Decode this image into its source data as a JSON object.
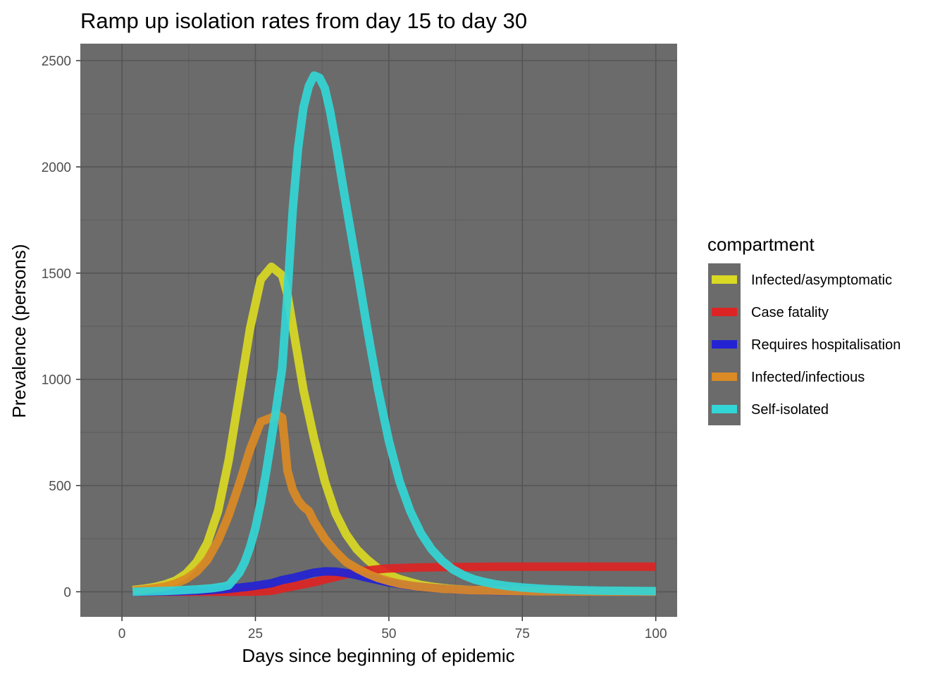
{
  "chart_data": {
    "type": "line",
    "title": "Ramp up isolation rates from day 15 to day 30",
    "xlabel": "Days since beginning of epidemic",
    "ylabel": "Prevalence (persons)",
    "xlim": [
      -7.8,
      104
    ],
    "ylim": [
      -118,
      2580
    ],
    "x_ticks": [
      0,
      25,
      50,
      75,
      100
    ],
    "y_ticks": [
      0,
      500,
      1000,
      1500,
      2000,
      2500
    ],
    "grid": true,
    "panel_background": "#6b6b6b",
    "legend": {
      "title": "compartment",
      "position": "right",
      "background": "#6b6b6b"
    },
    "series": [
      {
        "name": "Infected/asymptomatic",
        "color": "#d9d924",
        "x": [
          2,
          4,
          6,
          8,
          10,
          12,
          14,
          16,
          18,
          20,
          22,
          24,
          26,
          28,
          29,
          30,
          31,
          32,
          33,
          34,
          36,
          38,
          40,
          42,
          44,
          46,
          48,
          50,
          52,
          54,
          56,
          58,
          60,
          62,
          65,
          70,
          75,
          80,
          90,
          100
        ],
        "y": [
          8,
          14,
          22,
          34,
          52,
          85,
          140,
          230,
          380,
          620,
          930,
          1240,
          1470,
          1530,
          1510,
          1490,
          1400,
          1250,
          1100,
          950,
          720,
          520,
          370,
          270,
          200,
          150,
          110,
          80,
          60,
          45,
          32,
          24,
          18,
          13,
          9,
          5,
          3,
          2,
          1,
          1
        ]
      },
      {
        "name": "Case fatality",
        "color": "#dd2424",
        "x": [
          2,
          10,
          20,
          25,
          28,
          30,
          33,
          36,
          38,
          40,
          42,
          44,
          46,
          48,
          50,
          55,
          60,
          65,
          70,
          80,
          90,
          100
        ],
        "y": [
          0,
          0,
          0,
          1,
          5,
          15,
          30,
          45,
          58,
          70,
          82,
          93,
          100,
          106,
          110,
          114,
          116,
          117,
          118,
          118,
          118,
          118
        ]
      },
      {
        "name": "Requires hospitalisation",
        "color": "#2323d4",
        "x": [
          2,
          10,
          15,
          20,
          24,
          28,
          30,
          32,
          34,
          36,
          38,
          40,
          42,
          44,
          46,
          48,
          50,
          54,
          58,
          62,
          66,
          70,
          80,
          90,
          100
        ],
        "y": [
          0,
          2,
          6,
          14,
          25,
          40,
          55,
          65,
          78,
          90,
          96,
          95,
          88,
          78,
          66,
          55,
          44,
          28,
          18,
          11,
          7,
          4,
          2,
          1,
          0
        ]
      },
      {
        "name": "Infected/infectious",
        "color": "#db8a24",
        "x": [
          2,
          4,
          6,
          8,
          10,
          12,
          14,
          16,
          18,
          20,
          22,
          24,
          26,
          28,
          29,
          30,
          30.5,
          31,
          32,
          33,
          34,
          35,
          36,
          38,
          40,
          42,
          44,
          46,
          48,
          50,
          52,
          55,
          60,
          65,
          70,
          80,
          90,
          100
        ],
        "y": [
          5,
          10,
          16,
          24,
          38,
          60,
          95,
          150,
          240,
          360,
          510,
          670,
          800,
          820,
          835,
          820,
          700,
          570,
          480,
          430,
          400,
          380,
          330,
          250,
          190,
          140,
          110,
          85,
          65,
          50,
          38,
          26,
          14,
          8,
          5,
          2,
          1,
          0
        ]
      },
      {
        "name": "Self-isolated",
        "color": "#33d6d6",
        "x": [
          2,
          5,
          8,
          11,
          14,
          17,
          19,
          20,
          21,
          22,
          23,
          24,
          25,
          26,
          27,
          28,
          29,
          30,
          31,
          32,
          33,
          34,
          35,
          36,
          37,
          38,
          39,
          40,
          42,
          44,
          46,
          48,
          50,
          52,
          54,
          56,
          58,
          60,
          62,
          64,
          66,
          68,
          70,
          72,
          75,
          80,
          85,
          90,
          100
        ],
        "y": [
          0,
          2,
          4,
          7,
          11,
          17,
          25,
          30,
          60,
          90,
          140,
          210,
          300,
          420,
          560,
          720,
          880,
          1050,
          1400,
          1800,
          2090,
          2280,
          2380,
          2430,
          2420,
          2370,
          2260,
          2120,
          1820,
          1530,
          1230,
          950,
          710,
          520,
          380,
          275,
          200,
          145,
          105,
          78,
          58,
          45,
          35,
          28,
          20,
          12,
          8,
          5,
          3
        ]
      }
    ]
  }
}
